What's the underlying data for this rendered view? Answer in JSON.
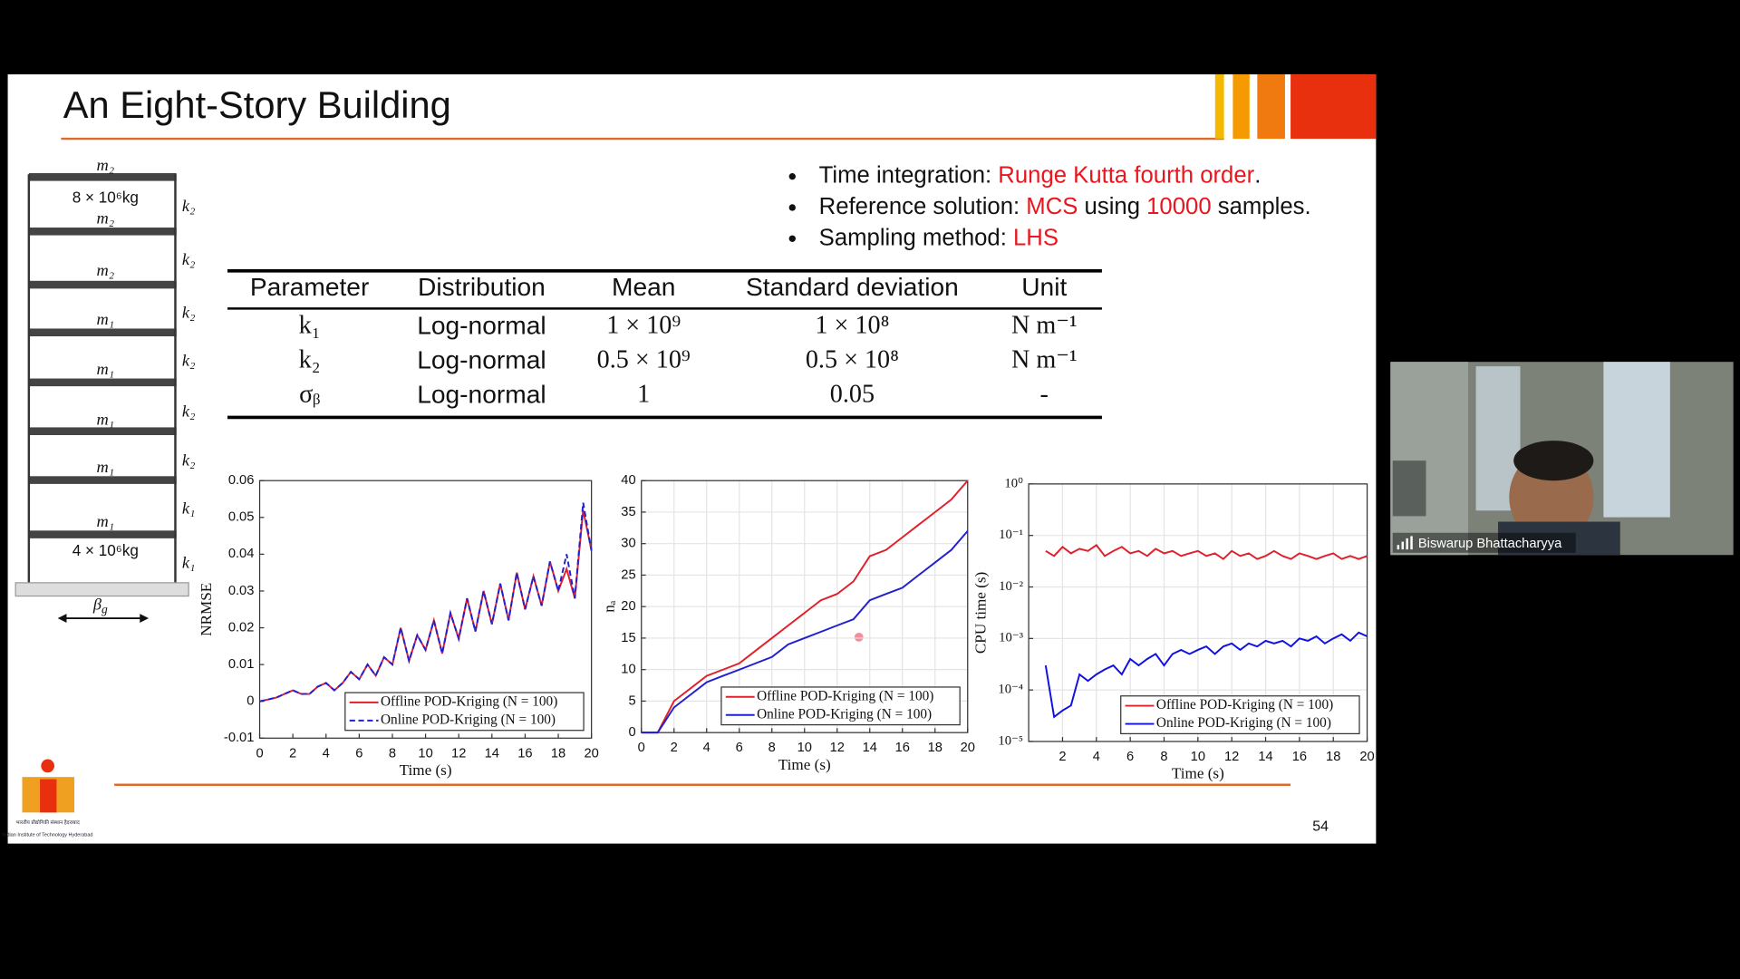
{
  "slide": {
    "title": "An Eight-Story Building",
    "bullets": [
      [
        "Time integration: ",
        "Runge Kutta fourth order",
        "."
      ],
      [
        "Reference solution: ",
        "MCS",
        " using ",
        "10000",
        " samples."
      ],
      [
        "Sampling method: ",
        "LHS"
      ]
    ],
    "page_number": "54",
    "logo_text": [
      "भारतीय प्रौद्योगिकी संस्थान हैदराबाद",
      "Indian Institute of Technology Hyderabad"
    ]
  },
  "table": {
    "header": [
      "Parameter",
      "Distribution",
      "Mean",
      "Standard deviation",
      "Unit"
    ],
    "rows": [
      [
        "k₁",
        "Log-normal",
        "1 × 10⁹",
        "1 × 10⁸",
        "N m⁻¹"
      ],
      [
        "k₂",
        "Log-normal",
        "0.5 × 10⁹",
        "0.5 × 10⁸",
        "N m⁻¹"
      ],
      [
        "σᵦ",
        "Log-normal",
        "1",
        "0.05",
        "-"
      ]
    ]
  },
  "building": {
    "masses": [
      "m₂",
      "m₂",
      "m₂",
      "m₁",
      "m₁",
      "m₁",
      "m₁",
      "m₁"
    ],
    "mass_values": [
      "8 × 10⁶kg",
      "4 × 10⁶kg"
    ],
    "stiffnesses": [
      "k₂",
      "k₂",
      "k₂",
      "k₂",
      "k₂",
      "k₂",
      "k₁",
      "k₁"
    ],
    "excitation": {
      "symbol": "β",
      "sub": "g"
    }
  },
  "charts": [
    {
      "type": "line",
      "xlabel": "Time (s)",
      "ylabel": "NRMSE",
      "grid": false,
      "legend": "lower right",
      "log_y": false,
      "xlim": [
        0,
        20
      ],
      "ylim": [
        -0.01,
        0.06
      ],
      "xticks": [
        0,
        2,
        4,
        6,
        8,
        10,
        12,
        14,
        16,
        18,
        20
      ],
      "yticks": [
        -0.01,
        0,
        0.01,
        0.02,
        0.03,
        0.04,
        0.05,
        0.06
      ],
      "x": [
        0,
        0.5,
        1,
        1.5,
        2,
        2.5,
        3,
        3.5,
        4,
        4.5,
        5,
        5.5,
        6,
        6.5,
        7,
        7.5,
        8,
        8.5,
        9,
        9.5,
        10,
        10.5,
        11,
        11.5,
        12,
        12.5,
        13,
        13.5,
        14,
        14.5,
        15,
        15.5,
        16,
        16.5,
        17,
        17.5,
        18,
        18.5,
        19,
        19.5,
        20
      ],
      "series": [
        {
          "name": "Offline POD-Kriging (N = 100)",
          "color": "#e0202c",
          "linestyle": "solid",
          "values": [
            0,
            0.0005,
            0.001,
            0.002,
            0.003,
            0.002,
            0.002,
            0.004,
            0.005,
            0.003,
            0.005,
            0.008,
            0.006,
            0.01,
            0.007,
            0.012,
            0.01,
            0.02,
            0.011,
            0.018,
            0.014,
            0.022,
            0.013,
            0.024,
            0.017,
            0.028,
            0.019,
            0.03,
            0.021,
            0.032,
            0.022,
            0.035,
            0.025,
            0.034,
            0.026,
            0.038,
            0.03,
            0.036,
            0.028,
            0.052,
            0.041
          ]
        },
        {
          "name": "Online POD-Kriging (N = 100)",
          "color": "#2020d0",
          "linestyle": "dashed",
          "values": [
            0,
            0.0005,
            0.001,
            0.002,
            0.003,
            0.002,
            0.002,
            0.004,
            0.005,
            0.003,
            0.005,
            0.008,
            0.006,
            0.01,
            0.007,
            0.012,
            0.01,
            0.02,
            0.011,
            0.018,
            0.014,
            0.022,
            0.013,
            0.024,
            0.017,
            0.028,
            0.019,
            0.03,
            0.021,
            0.032,
            0.022,
            0.035,
            0.025,
            0.034,
            0.026,
            0.038,
            0.03,
            0.04,
            0.028,
            0.054,
            0.041
          ]
        }
      ]
    },
    {
      "type": "line",
      "xlabel": "Time (s)",
      "ylabel": "nₐ",
      "grid": true,
      "legend": "lower right",
      "log_y": false,
      "xlim": [
        0,
        20
      ],
      "ylim": [
        0,
        40
      ],
      "xticks": [
        0,
        2,
        4,
        6,
        8,
        10,
        12,
        14,
        16,
        18,
        20
      ],
      "yticks": [
        0,
        5,
        10,
        15,
        20,
        25,
        30,
        35,
        40
      ],
      "x": [
        0,
        1,
        2,
        3,
        4,
        5,
        6,
        7,
        8,
        9,
        10,
        11,
        12,
        13,
        14,
        15,
        16,
        17,
        18,
        19,
        20
      ],
      "series": [
        {
          "name": "Offline POD-Kriging (N = 100)",
          "color": "#e0202c",
          "linestyle": "solid",
          "values": [
            0,
            0,
            5,
            7,
            9,
            10,
            11,
            13,
            15,
            17,
            19,
            21,
            22,
            24,
            28,
            29,
            31,
            33,
            35,
            37,
            40
          ]
        },
        {
          "name": "Online POD-Kriging (N = 100)",
          "color": "#2020d0",
          "linestyle": "solid",
          "values": [
            0,
            0,
            4,
            6,
            8,
            9,
            10,
            11,
            12,
            14,
            15,
            16,
            17,
            18,
            21,
            22,
            23,
            25,
            27,
            29,
            32
          ]
        }
      ]
    },
    {
      "type": "line",
      "xlabel": "Time (s)",
      "ylabel": "CPU time (s)",
      "grid": true,
      "legend": "lower right",
      "log_y": true,
      "xlim": [
        0,
        20
      ],
      "ylim": [
        1e-05,
        1
      ],
      "xticks": [
        2,
        4,
        6,
        8,
        10,
        12,
        14,
        16,
        18,
        20
      ],
      "yticks": [
        {
          "value": 1e-05,
          "label": "10⁻⁵"
        },
        {
          "value": 0.0001,
          "label": "10⁻⁴"
        },
        {
          "value": 0.001,
          "label": "10⁻³"
        },
        {
          "value": 0.01,
          "label": "10⁻²"
        },
        {
          "value": 0.1,
          "label": "10⁻¹"
        },
        {
          "value": 1,
          "label": "10⁰"
        }
      ],
      "x": [
        1,
        1.5,
        2,
        2.5,
        3,
        3.5,
        4,
        4.5,
        5,
        5.5,
        6,
        6.5,
        7,
        7.5,
        8,
        8.5,
        9,
        9.5,
        10,
        10.5,
        11,
        11.5,
        12,
        12.5,
        13,
        13.5,
        14,
        14.5,
        15,
        15.5,
        16,
        16.5,
        17,
        17.5,
        18,
        18.5,
        19,
        19.5,
        20
      ],
      "series": [
        {
          "name": "Offline POD-Kriging (N = 100)",
          "color": "#e0202c",
          "linestyle": "solid",
          "values": [
            0.05,
            0.04,
            0.06,
            0.045,
            0.055,
            0.05,
            0.065,
            0.04,
            0.05,
            0.06,
            0.045,
            0.05,
            0.04,
            0.055,
            0.045,
            0.05,
            0.04,
            0.045,
            0.05,
            0.04,
            0.045,
            0.035,
            0.05,
            0.04,
            0.045,
            0.035,
            0.04,
            0.05,
            0.04,
            0.035,
            0.045,
            0.04,
            0.035,
            0.04,
            0.045,
            0.035,
            0.04,
            0.035,
            0.04
          ]
        },
        {
          "name": "Online POD-Kriging (N = 100)",
          "color": "#1010e0",
          "linestyle": "solid",
          "values": [
            0.0003,
            3e-05,
            4e-05,
            5e-05,
            0.0002,
            0.00015,
            0.0002,
            0.00025,
            0.0003,
            0.0002,
            0.0004,
            0.0003,
            0.0004,
            0.0005,
            0.0003,
            0.0005,
            0.0006,
            0.0005,
            0.0006,
            0.0007,
            0.0005,
            0.0007,
            0.0008,
            0.0006,
            0.0008,
            0.0007,
            0.0009,
            0.0008,
            0.0009,
            0.0007,
            0.001,
            0.0009,
            0.0011,
            0.0008,
            0.001,
            0.0012,
            0.0009,
            0.0013,
            0.0011
          ]
        }
      ]
    }
  ],
  "webcam": {
    "participant": "Biswarup Bhattacharyya"
  }
}
